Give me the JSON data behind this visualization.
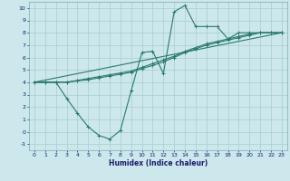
{
  "xlabel": "Humidex (Indice chaleur)",
  "background_color": "#cce8ec",
  "grid_color": "#aaccd0",
  "line_color": "#2a7a6a",
  "xlim": [
    -0.5,
    23.5
  ],
  "ylim": [
    -1.5,
    10.5
  ],
  "xticks": [
    0,
    1,
    2,
    3,
    4,
    5,
    6,
    7,
    8,
    9,
    10,
    11,
    12,
    13,
    14,
    15,
    16,
    17,
    18,
    19,
    20,
    21,
    22,
    23
  ],
  "yticks": [
    -1,
    0,
    1,
    2,
    3,
    4,
    5,
    6,
    7,
    8,
    9,
    10
  ],
  "line1_x": [
    0,
    1,
    2,
    3,
    4,
    5,
    6,
    7,
    8,
    9,
    10,
    11,
    12,
    13,
    14,
    15,
    16,
    17,
    18,
    19,
    20,
    21,
    22,
    23
  ],
  "line1_y": [
    4.0,
    4.0,
    4.0,
    2.7,
    1.5,
    0.4,
    -0.3,
    -0.6,
    0.1,
    3.3,
    6.4,
    6.5,
    4.7,
    9.7,
    10.2,
    8.5,
    8.5,
    8.5,
    7.5,
    8.0,
    8.0,
    8.0,
    8.0,
    8.0
  ],
  "line2_x": [
    0,
    1,
    2,
    3,
    4,
    5,
    6,
    7,
    8,
    9,
    10,
    11,
    12,
    13,
    14,
    15,
    16,
    17,
    18,
    19,
    20,
    21,
    22,
    23
  ],
  "line2_y": [
    4.0,
    4.0,
    4.0,
    4.0,
    4.1,
    4.2,
    4.35,
    4.5,
    4.65,
    4.8,
    5.1,
    5.35,
    5.65,
    6.0,
    6.4,
    6.7,
    7.0,
    7.2,
    7.4,
    7.6,
    7.8,
    8.0,
    8.0,
    8.0
  ],
  "line3_x": [
    0,
    1,
    2,
    3,
    4,
    5,
    6,
    7,
    8,
    9,
    10,
    11,
    12,
    13,
    14,
    15,
    16,
    17,
    18,
    19,
    20,
    21,
    22,
    23
  ],
  "line3_y": [
    4.0,
    4.0,
    4.0,
    4.0,
    4.15,
    4.3,
    4.45,
    4.6,
    4.75,
    4.9,
    5.2,
    5.5,
    5.8,
    6.1,
    6.5,
    6.8,
    7.1,
    7.3,
    7.5,
    7.7,
    7.9,
    8.0,
    8.0,
    8.0
  ],
  "line4_x": [
    0,
    23
  ],
  "line4_y": [
    4.0,
    8.0
  ]
}
